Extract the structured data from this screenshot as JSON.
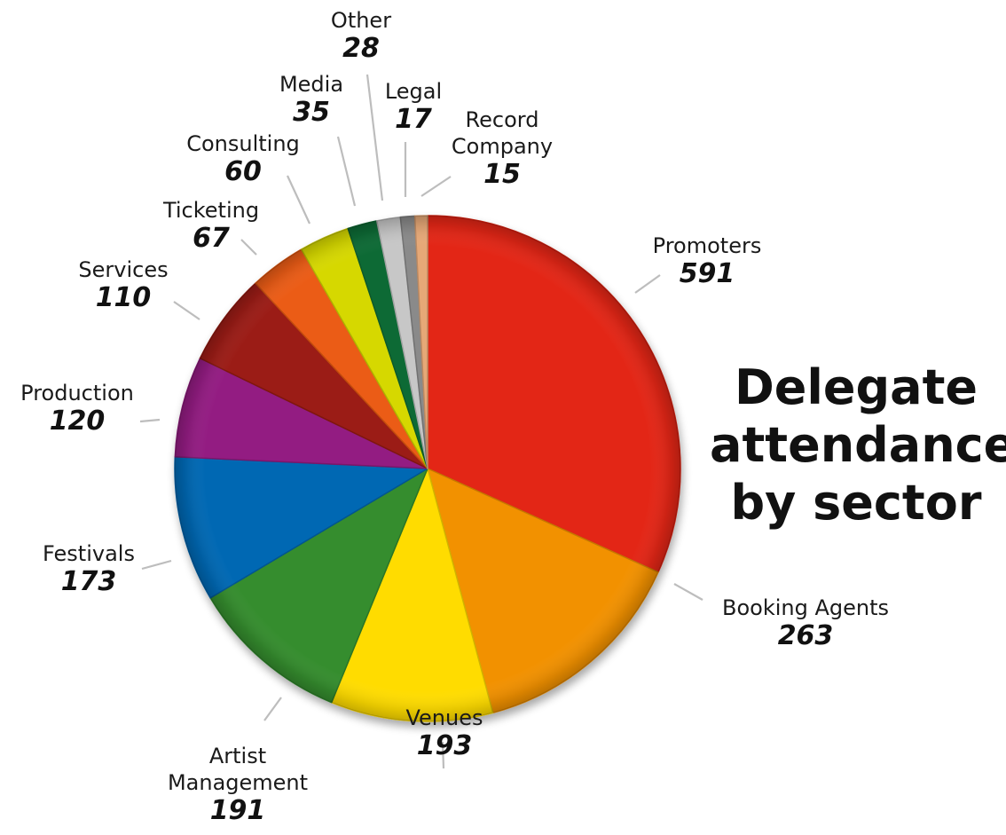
{
  "chart_data": {
    "type": "pie",
    "title_lines": [
      "Delegate",
      "attendance",
      "by sector"
    ],
    "slices": [
      {
        "label_lines": [
          "Promoters"
        ],
        "value": 591,
        "color": "#e32515"
      },
      {
        "label_lines": [
          "Booking Agents"
        ],
        "value": 263,
        "color": "#f29100"
      },
      {
        "label_lines": [
          "Venues"
        ],
        "value": 193,
        "color": "#ffdc00"
      },
      {
        "label_lines": [
          "Artist",
          "Management"
        ],
        "value": 191,
        "color": "#358d2e"
      },
      {
        "label_lines": [
          "Festivals"
        ],
        "value": 173,
        "color": "#0168b3"
      },
      {
        "label_lines": [
          "Production"
        ],
        "value": 120,
        "color": "#931d82"
      },
      {
        "label_lines": [
          "Services"
        ],
        "value": 110,
        "color": "#9b1c14"
      },
      {
        "label_lines": [
          "Ticketing"
        ],
        "value": 67,
        "color": "#eb5c14"
      },
      {
        "label_lines": [
          "Consulting"
        ],
        "value": 60,
        "color": "#d6d800"
      },
      {
        "label_lines": [
          "Media"
        ],
        "value": 35,
        "color": "#0a6b34"
      },
      {
        "label_lines": [
          "Other"
        ],
        "value": 28,
        "color": "#c7c7c7"
      },
      {
        "label_lines": [
          "Legal"
        ],
        "value": 17,
        "color": "#8a8a8a"
      },
      {
        "label_lines": [
          "Record",
          "Company"
        ],
        "value": 15,
        "color": "#e6a877"
      }
    ]
  }
}
